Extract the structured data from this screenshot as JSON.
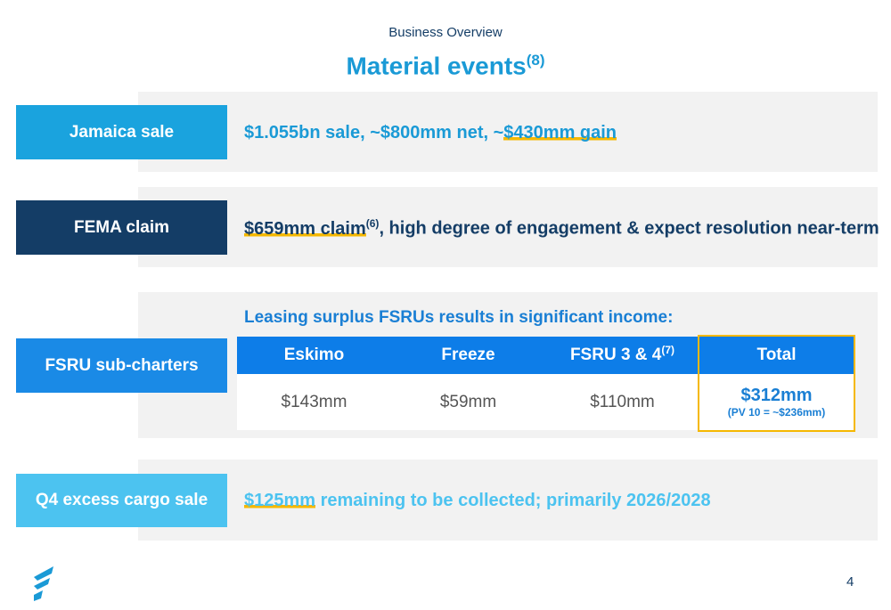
{
  "header": {
    "kicker": "Business Overview",
    "title": "Material events",
    "title_note": "(8)"
  },
  "rows": [
    {
      "label": "Jamaica sale",
      "text": "$1.055bn sale, ~$800mm net, ~",
      "highlight": "$430mm gain"
    },
    {
      "label": "FEMA claim",
      "highlight": "$659mm claim",
      "note": "(6)",
      "text": ", high degree of engagement & expect resolution near-term"
    },
    {
      "label": "FSRU sub-charters",
      "heading": "Leasing surplus FSRUs results in significant income:",
      "table": {
        "headers": [
          "Eskimo",
          "Freeze",
          "FSRU 3 & 4",
          "Total"
        ],
        "header_note": "(7)",
        "values": [
          "$143mm",
          "$59mm",
          "$110mm",
          "$312mm"
        ],
        "total_note": "(PV 10 = ~$236mm)"
      }
    },
    {
      "label": "Q4 excess cargo sale",
      "highlight": "$125mm",
      "text": " remaining to be collected; primarily 2026/2028"
    }
  ],
  "footer": {
    "page": "4"
  }
}
